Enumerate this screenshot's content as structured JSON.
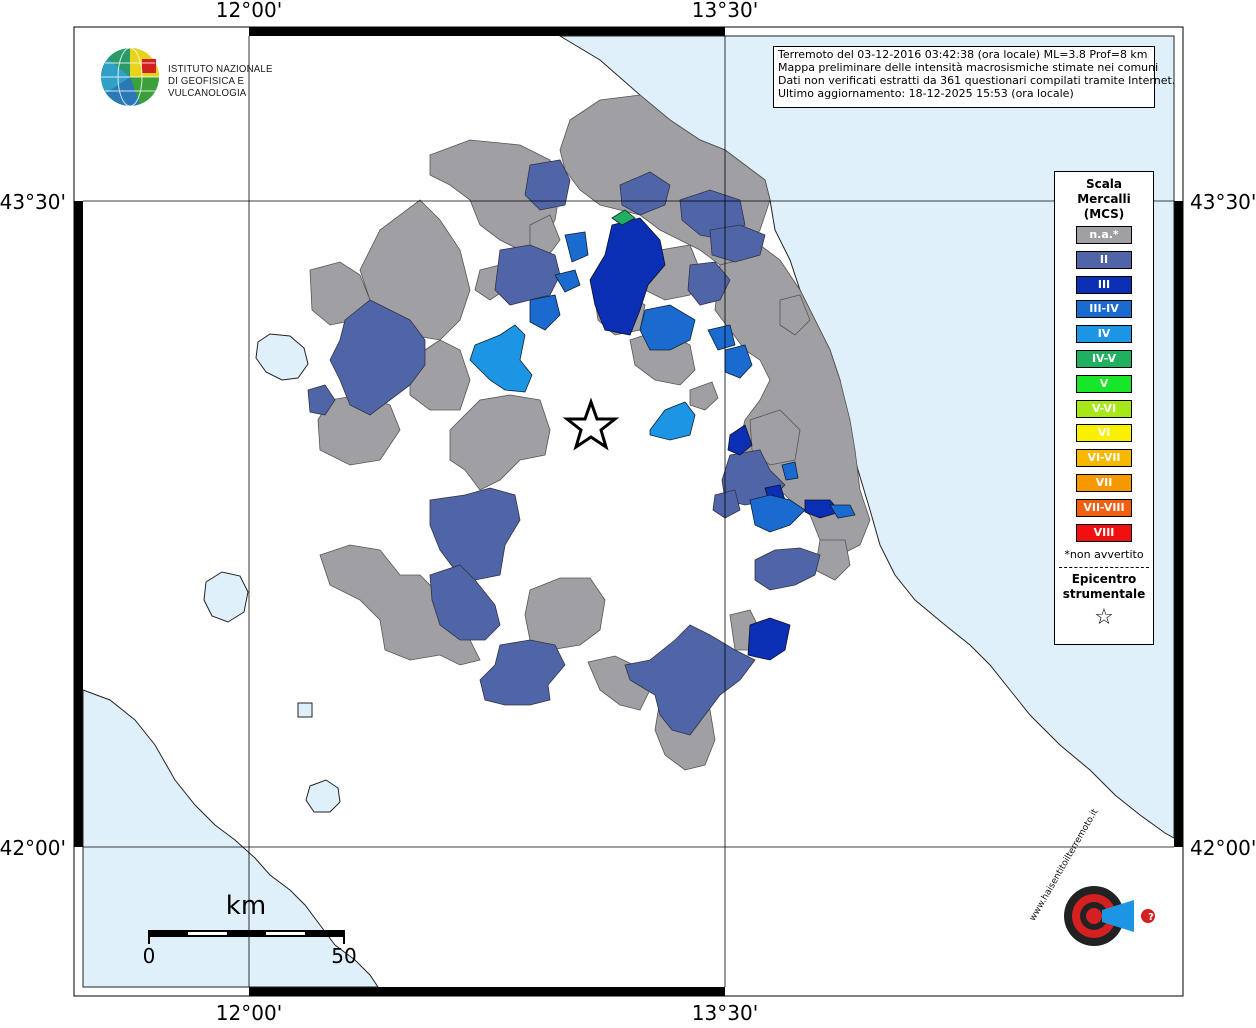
{
  "map": {
    "grid_labels": {
      "lon_left": "12°00'",
      "lon_right": "13°30'",
      "lat_top": "43°30'",
      "lat_bottom": "42°00'"
    },
    "colors": {
      "sea": "#dff0fb",
      "land": "#ffffff",
      "no_data": "#a0a0a4",
      "II": "#5064a8",
      "III": "#0a2fb4",
      "III-IV": "#1a6ad0",
      "IV": "#1c96e4",
      "IV-V": "#20b060"
    },
    "epicenter_marker": "star-icon"
  },
  "info": {
    "line1": "Terremoto del 03-12-2016 03:42:38 (ora locale) ML=3.8 Prof=8 km",
    "line2": "Mappa preliminare delle intensità macrosismiche stimate nei comuni",
    "line3": "Dati non verificati estratti da 361 questionari compilati tramite Internet.",
    "line4": "Ultimo aggiornamento: 18-12-2025 15:53 (ora locale)"
  },
  "legend": {
    "title": "Scala\nMercalli\n(MCS)",
    "items": [
      {
        "label": "n.a.*",
        "color": "#a0a0a4"
      },
      {
        "label": "II",
        "color": "#5064a8"
      },
      {
        "label": "III",
        "color": "#0a2fb4"
      },
      {
        "label": "III-IV",
        "color": "#1a6ad0"
      },
      {
        "label": "IV",
        "color": "#1c96e4"
      },
      {
        "label": "IV-V",
        "color": "#20b060"
      },
      {
        "label": "V",
        "color": "#18e628"
      },
      {
        "label": "V-VI",
        "color": "#a8e818"
      },
      {
        "label": "VI",
        "color": "#f8f000"
      },
      {
        "label": "VI-VII",
        "color": "#f8b800"
      },
      {
        "label": "VII",
        "color": "#f89800"
      },
      {
        "label": "VII-VIII",
        "color": "#f06010"
      },
      {
        "label": "VIII",
        "color": "#f01010"
      }
    ],
    "note": "*non avvertito",
    "epicenter_label": "Epicentro\nstrumentale",
    "epicenter_icon": "star-icon"
  },
  "scalebar": {
    "unit": "km",
    "min": "0",
    "max": "50"
  },
  "logos": {
    "ingv": "ISTITUTO NAZIONALE\nDI GEOFISICA E VULCANOLOGIA",
    "hsit": "www.haisentitoilterremoto.it"
  }
}
